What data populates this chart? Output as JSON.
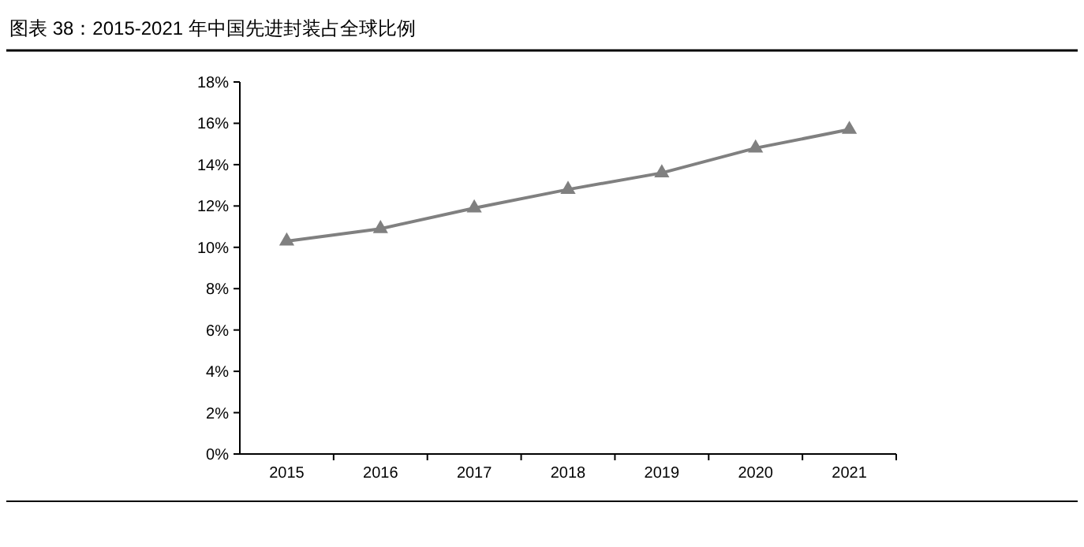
{
  "chart_data": {
    "type": "line",
    "title": "图表 38：2015-2021 年中国先进封装占全球比例",
    "categories": [
      "2015",
      "2016",
      "2017",
      "2018",
      "2019",
      "2020",
      "2021"
    ],
    "series": [
      {
        "color": "#808080",
        "values": [
          10.3,
          10.9,
          11.9,
          12.8,
          13.6,
          14.8,
          15.7
        ]
      }
    ],
    "ylim": [
      0,
      18
    ],
    "yticks": [
      {
        "value": 0,
        "label": "0%"
      },
      {
        "value": 2,
        "label": "2%"
      },
      {
        "value": 4,
        "label": "4%"
      },
      {
        "value": 6,
        "label": "6%"
      },
      {
        "value": 8,
        "label": "8%"
      },
      {
        "value": 10,
        "label": "10%"
      },
      {
        "value": 12,
        "label": "12%"
      },
      {
        "value": 14,
        "label": "14%"
      },
      {
        "value": 16,
        "label": "16%"
      },
      {
        "value": 18,
        "label": "18%"
      }
    ],
    "marker": "triangle",
    "line_style": "solid",
    "grid": false
  }
}
